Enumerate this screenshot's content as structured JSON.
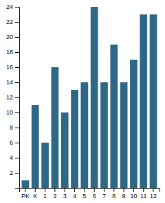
{
  "chart_data": {
    "type": "bar",
    "categories": [
      "PK",
      "K",
      "1",
      "2",
      "3",
      "4",
      "5",
      "6",
      "7",
      "8",
      "9",
      "10",
      "11",
      "12"
    ],
    "values": [
      1,
      11,
      6,
      16,
      10,
      13,
      14,
      24,
      14,
      19,
      14,
      17,
      23,
      23
    ],
    "color": "#2e6887",
    "ylim": [
      0,
      24
    ],
    "yticks": [
      2,
      4,
      6,
      8,
      10,
      12,
      14,
      16,
      18,
      20,
      22,
      24
    ],
    "grid": false
  }
}
